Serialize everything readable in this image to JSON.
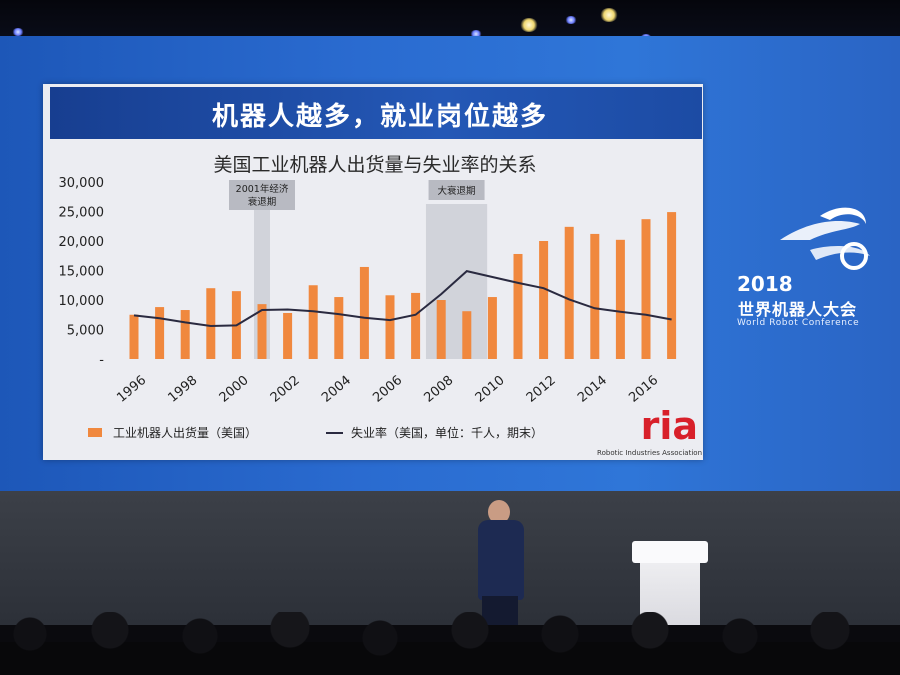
{
  "slide": {
    "headline": "机器人越多，就业岗位越多",
    "logo": "ria",
    "logo_subtitle": "Robotic Industries Association"
  },
  "event_brand": {
    "year": "2018",
    "name_cn": "世界机器人大会",
    "name_en": "World Robot Conference"
  },
  "chart_data": {
    "type": "bar",
    "title": "美国工业机器人出货量与失业率的关系",
    "x": [
      1996,
      1997,
      1998,
      1999,
      2000,
      2001,
      2002,
      2003,
      2004,
      2005,
      2006,
      2007,
      2008,
      2009,
      2010,
      2011,
      2012,
      2013,
      2014,
      2015,
      2016,
      2017
    ],
    "x_tick_labels": [
      "1996",
      "1998",
      "2000",
      "2002",
      "2004",
      "2006",
      "2008",
      "2010",
      "2012",
      "2014",
      "2016"
    ],
    "y_tick_labels": [
      "30,000",
      "25,000",
      "20,000",
      "15,000",
      "10,000",
      "5,000",
      "-"
    ],
    "ylim": [
      0,
      30000
    ],
    "grid": false,
    "legend_position": "bottom",
    "series": [
      {
        "name": "工业机器人出货量（美国）",
        "type": "bar",
        "color": "#f0883e",
        "values": [
          7500,
          8800,
          8300,
          12000,
          11500,
          9300,
          7800,
          12500,
          10500,
          15600,
          10800,
          11200,
          10000,
          8100,
          10500,
          17800,
          20000,
          22400,
          21200,
          20200,
          23700,
          24900
        ]
      },
      {
        "name": "失业率（美国，单位：千人，期末）",
        "type": "line",
        "color": "#2a2a40",
        "values": [
          7400,
          6900,
          6200,
          5600,
          5700,
          8300,
          8400,
          8100,
          7600,
          7000,
          6600,
          7500,
          11000,
          14900,
          13900,
          12900,
          12000,
          10100,
          8600,
          8000,
          7500,
          6700
        ]
      }
    ],
    "annotations": [
      {
        "label": "2001年经济",
        "label2": "衰退期",
        "from": 2001,
        "to": 2001
      },
      {
        "label": "大衰退期",
        "from": 2007.6,
        "to": 2009.6
      }
    ]
  }
}
